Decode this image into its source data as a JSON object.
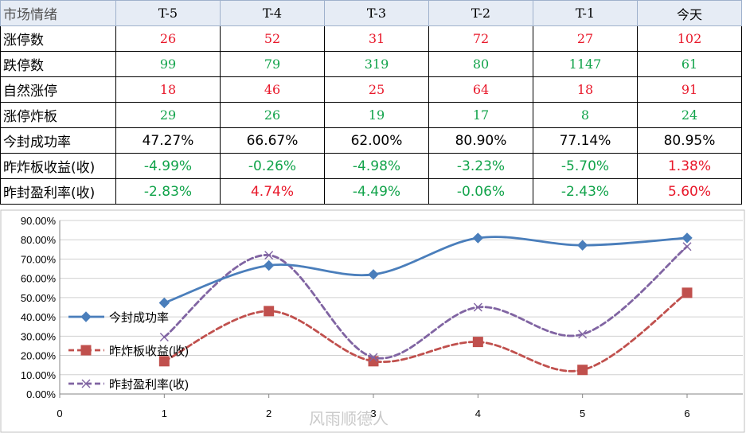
{
  "table": {
    "header": [
      "市场情绪",
      "T-5",
      "T-4",
      "T-3",
      "T-2",
      "T-1",
      "今天"
    ],
    "rows": [
      {
        "label": "涨停数",
        "values": [
          "26",
          "52",
          "31",
          "72",
          "27",
          "102"
        ],
        "colors": [
          "red",
          "red",
          "red",
          "red",
          "red",
          "red"
        ]
      },
      {
        "label": "跌停数",
        "values": [
          "99",
          "79",
          "319",
          "80",
          "1147",
          "61"
        ],
        "colors": [
          "green",
          "green",
          "green",
          "green",
          "green",
          "green"
        ]
      },
      {
        "label": "自然涨停",
        "values": [
          "18",
          "46",
          "25",
          "64",
          "18",
          "91"
        ],
        "colors": [
          "red",
          "red",
          "red",
          "red",
          "red",
          "red"
        ]
      },
      {
        "label": "涨停炸板",
        "values": [
          "29",
          "26",
          "19",
          "17",
          "8",
          "24"
        ],
        "colors": [
          "green",
          "green",
          "green",
          "green",
          "green",
          "green"
        ]
      },
      {
        "label": "今封成功率",
        "values": [
          "47.27%",
          "66.67%",
          "62.00%",
          "80.90%",
          "77.14%",
          "80.95%"
        ],
        "colors": [
          "black",
          "black",
          "black",
          "black",
          "black",
          "black"
        ]
      },
      {
        "label": "昨炸板收益(收)",
        "values": [
          "-4.99%",
          "-0.26%",
          "-4.98%",
          "-3.23%",
          "-5.70%",
          "1.38%"
        ],
        "colors": [
          "green",
          "green",
          "green",
          "green",
          "green",
          "red"
        ]
      },
      {
        "label": "昨封盈利率(收)",
        "values": [
          "-2.83%",
          "4.74%",
          "-4.49%",
          "-0.06%",
          "-2.43%",
          "5.60%"
        ],
        "colors": [
          "green",
          "red",
          "green",
          "green",
          "green",
          "red"
        ]
      }
    ]
  },
  "colors": {
    "red": "#e8182a",
    "green": "#11a34a",
    "blue": "#4a7ebb",
    "dark_red": "#c0504d",
    "purple": "#8064a2"
  },
  "chart_data": {
    "type": "line",
    "x": [
      1,
      2,
      3,
      4,
      5,
      6
    ],
    "xlim": [
      0,
      6
    ],
    "ylim": [
      0,
      90
    ],
    "x_ticks": [
      "0",
      "1",
      "2",
      "3",
      "4",
      "5",
      "6"
    ],
    "y_ticks": [
      "0.00%",
      "10.00%",
      "20.00%",
      "30.00%",
      "40.00%",
      "50.00%",
      "60.00%",
      "70.00%",
      "80.00%",
      "90.00%"
    ],
    "grid": true,
    "smooth": true,
    "legend_position": "left",
    "series": [
      {
        "name": "今封成功率",
        "values": [
          47.27,
          66.67,
          62.0,
          80.9,
          77.14,
          80.95
        ],
        "marker": "diamond",
        "line": "solid",
        "color": "#4a7ebb"
      },
      {
        "name": "昨炸板收益(收)",
        "values": [
          17,
          43,
          17,
          27,
          12.5,
          52.5
        ],
        "marker": "square",
        "line": "dashed",
        "color": "#c0504d"
      },
      {
        "name": "昨封盈利率(收)",
        "values": [
          29.5,
          72,
          19,
          45,
          31,
          76.5
        ],
        "marker": "x",
        "line": "dashed",
        "color": "#8064a2"
      }
    ]
  },
  "watermark": "风雨顺德人"
}
